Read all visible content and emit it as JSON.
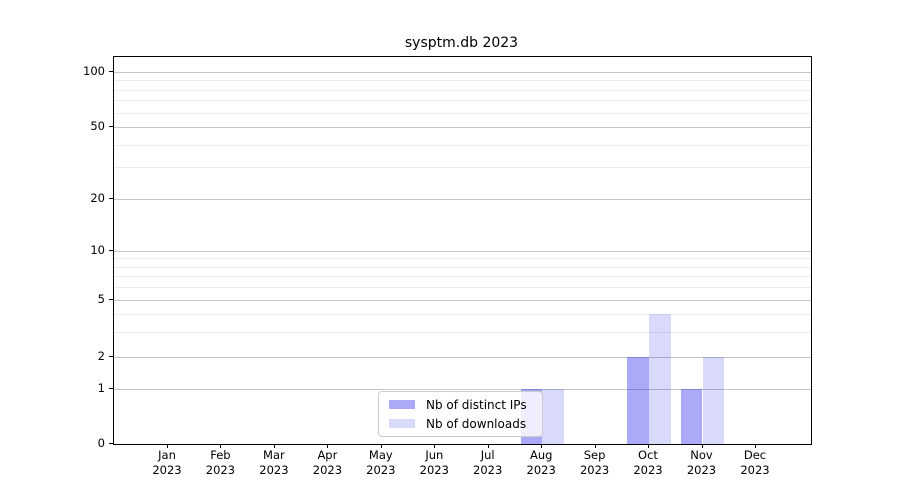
{
  "chart_data": {
    "type": "bar",
    "title": "sysptm.db 2023",
    "categories": [
      "Jan",
      "Feb",
      "Mar",
      "Apr",
      "May",
      "Jun",
      "Jul",
      "Aug",
      "Sep",
      "Oct",
      "Nov",
      "Dec"
    ],
    "category_year": "2023",
    "series": [
      {
        "name": "Nb of distinct IPs",
        "color": "rgba(0,0,238,0.335)",
        "values": [
          0,
          0,
          0,
          0,
          0,
          0,
          0,
          1,
          0,
          2,
          1,
          0
        ]
      },
      {
        "name": "Nb of downloads",
        "color": "rgba(0,0,238,0.15)",
        "values": [
          0,
          0,
          0,
          0,
          0,
          0,
          0,
          1,
          0,
          4,
          2,
          0
        ]
      }
    ],
    "yscale": "symlog",
    "ylabel": "",
    "xlabel": "",
    "ytick_labels": [
      0,
      1,
      2,
      5,
      10,
      20,
      50,
      100
    ],
    "yminor_gridlines": [
      3,
      4,
      6,
      7,
      8,
      9,
      30,
      40,
      60,
      70,
      80,
      90
    ],
    "ylim": [
      0,
      120
    ],
    "grid": "on",
    "legend_position": "lower center",
    "colors": {
      "major_grid": "#c6c6c6",
      "minor_grid": "#ececec",
      "axis": "#000000",
      "legend_border": "#cccccc"
    }
  }
}
